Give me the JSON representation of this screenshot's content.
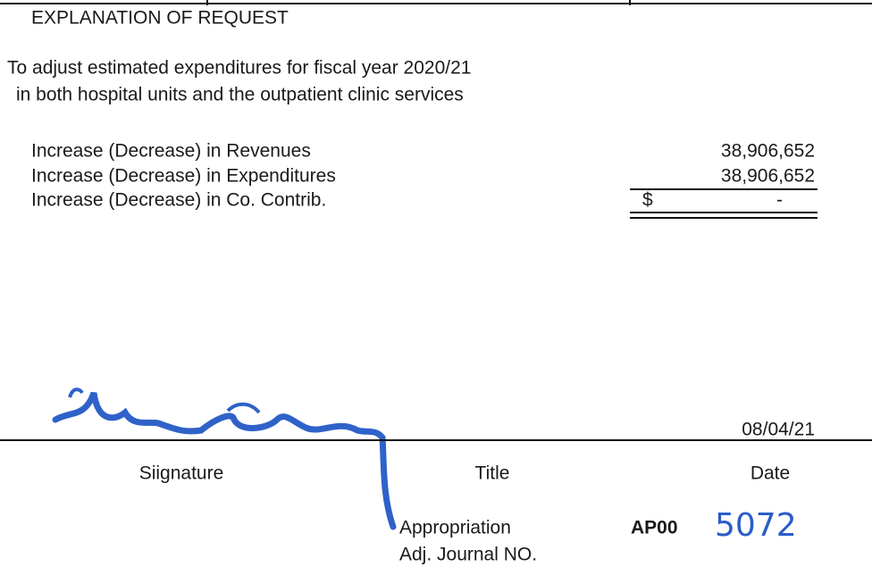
{
  "section": {
    "title": "EXPLANATION OF REQUEST",
    "description": [
      "To adjust estimated expenditures for fiscal year 2020/21",
      "in both hospital units and the outpatient clinic services"
    ],
    "rows": [
      {
        "label": "Increase (Decrease) in Revenues",
        "amount": "38,906,652"
      },
      {
        "label": "Increase (Decrease) in Expenditures",
        "amount": "38,906,652"
      },
      {
        "label": "Increase (Decrease) in Co. Contrib.",
        "currency": "$",
        "amount": "-"
      }
    ]
  },
  "signature_block": {
    "date_value": "08/04/21",
    "labels": [
      "Siignature",
      "Title",
      "Date"
    ]
  },
  "journal": {
    "label_lines": [
      "Appropriation",
      "Adj. Journal NO."
    ],
    "prefix": "AP00",
    "number": "5072"
  }
}
